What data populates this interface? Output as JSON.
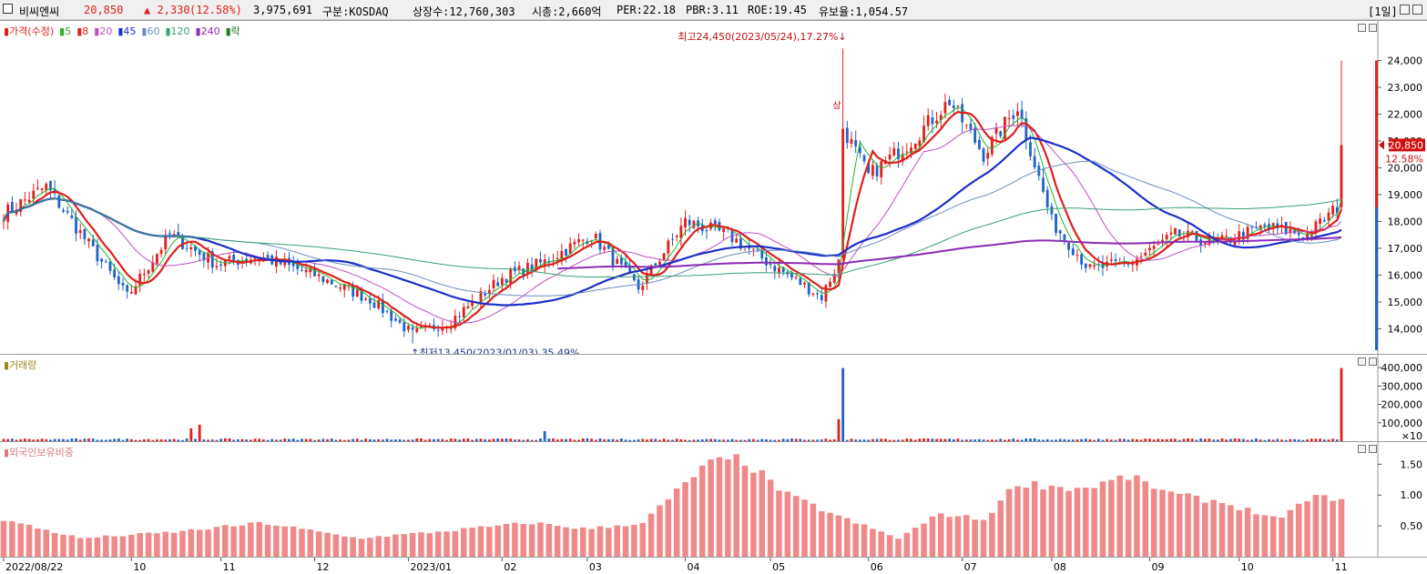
{
  "header": {
    "name": "비씨엔씨",
    "price": "20,850",
    "change": "▲ 2,330",
    "change_pct": "(12.58%)",
    "volume": "3,975,691",
    "market": "구분:KOSDAQ",
    "shares": "상장수:12,760,303",
    "market_cap": "시총:2,660억",
    "per": "PER:22.18",
    "pbr": "PBR:3.11",
    "roe": "ROE:19.45",
    "float_ratio": "유보율:1,054.57",
    "period": "[1일]"
  },
  "colors": {
    "up": "#e0201c",
    "down": "#1e64c8",
    "ma5": "#2ab02a",
    "ma8": "#e0201c",
    "ma20": "#c050c0",
    "ma45": "#1c2fc8",
    "ma60": "#6a8ec0",
    "ma120": "#3aa070",
    "ma240": "#8a2cb4",
    "foreign": "#f08a8a",
    "volume_label": "#a08a20"
  },
  "price_panel": {
    "legend": {
      "price": "가격(수정)",
      "ma5": "5",
      "ma8": "8",
      "ma20": "20",
      "ma45": "45",
      "ma60": "60",
      "ma120": "120",
      "ma240": "240",
      "fall": "락"
    },
    "high_annotation": "최고24,450(2023/05/24),17.27%",
    "low_annotation": "최저13,450(2023/01/03),35.49%",
    "marker_up": "상",
    "current_price_tag": "20,850",
    "current_pct_tag": "12.58%"
  },
  "volume_panel": {
    "label": "거래량",
    "unit": "×10"
  },
  "foreign_panel": {
    "label": "외국인보유비중"
  },
  "x_axis": {
    "labels": [
      "2022/08/22",
      "10",
      "11",
      "12",
      "2023/01",
      "02",
      "03",
      "04",
      "05",
      "06",
      "07",
      "08",
      "09",
      "10",
      "11"
    ]
  },
  "chart_data": [
    {
      "type": "candlestick",
      "title": "비씨엔씨",
      "y_ticks": [
        14000,
        15000,
        16000,
        17000,
        18000,
        19000,
        20000,
        21000,
        22000,
        23000,
        24000
      ],
      "y_tick_labels": [
        "14,000",
        "15,000",
        "16,000",
        "17,000",
        "18,000",
        "19,000",
        "20,000",
        "21,000",
        "22,000",
        "23,000",
        "24,000"
      ],
      "ylim": [
        13200,
        25000
      ],
      "anchors": [
        {
          "date": "2022/08/22",
          "close": 18300
        },
        {
          "date": "2022/09/05",
          "close": 19300
        },
        {
          "date": "2022/09/30",
          "close": 15200
        },
        {
          "date": "2022/10/14",
          "close": 17500
        },
        {
          "date": "2022/10/31",
          "close": 16400
        },
        {
          "date": "2022/11/14",
          "close": 16700
        },
        {
          "date": "2022/12/01",
          "close": 16000
        },
        {
          "date": "2022/12/20",
          "close": 15100
        },
        {
          "date": "2023/01/03",
          "close": 13800
        },
        {
          "date": "2023/01/16",
          "close": 14300
        },
        {
          "date": "2023/02/01",
          "close": 15900
        },
        {
          "date": "2023/02/15",
          "close": 16500
        },
        {
          "date": "2023/03/02",
          "close": 17500
        },
        {
          "date": "2023/03/17",
          "close": 15500
        },
        {
          "date": "2023/04/03",
          "close": 18000
        },
        {
          "date": "2023/04/17",
          "close": 17500
        },
        {
          "date": "2023/05/02",
          "close": 16300
        },
        {
          "date": "2023/05/17",
          "close": 15200
        },
        {
          "date": "2023/05/23",
          "close": 16500
        },
        {
          "date": "2023/05/24",
          "close": 21500
        },
        {
          "date": "2023/06/01",
          "close": 19700
        },
        {
          "date": "2023/06/15",
          "close": 21000
        },
        {
          "date": "2023/06/28",
          "close": 22500
        },
        {
          "date": "2023/07/10",
          "close": 20500
        },
        {
          "date": "2023/07/20",
          "close": 22300
        },
        {
          "date": "2023/08/01",
          "close": 18000
        },
        {
          "date": "2023/08/14",
          "close": 16200
        },
        {
          "date": "2023/08/28",
          "close": 16500
        },
        {
          "date": "2023/09/11",
          "close": 17500
        },
        {
          "date": "2023/09/25",
          "close": 17200
        },
        {
          "date": "2023/10/10",
          "close": 17800
        },
        {
          "date": "2023/10/24",
          "close": 17500
        },
        {
          "date": "2023/11/02",
          "close": 18520
        },
        {
          "date": "2023/11/03",
          "close": 20850
        }
      ],
      "series": [
        {
          "name": "5",
          "period": 5
        },
        {
          "name": "8",
          "period": 8
        },
        {
          "name": "20",
          "period": 20
        },
        {
          "name": "45",
          "period": 45
        },
        {
          "name": "60",
          "period": 60
        },
        {
          "name": "120",
          "period": 120
        },
        {
          "name": "240",
          "period": 240
        }
      ],
      "high": {
        "value": 24450,
        "date": "2023/05/24",
        "pct": 17.27
      },
      "low": {
        "value": 13450,
        "date": "2023/01/03",
        "pct": 35.49
      },
      "last": {
        "value": 20850,
        "pct": 12.58
      },
      "grid": false
    },
    {
      "type": "bar",
      "title": "거래량",
      "y_ticks": [
        100000,
        200000,
        300000,
        400000
      ],
      "y_tick_labels": [
        "100,000",
        "200,000",
        "300,000",
        "400,000"
      ],
      "ylim": [
        0,
        450000
      ],
      "spikes": [
        {
          "date": "2022/10/21",
          "value": 70000,
          "dir": "up"
        },
        {
          "date": "2022/10/25",
          "value": 90000,
          "dir": "up"
        },
        {
          "date": "2023/02/15",
          "value": 55000,
          "dir": "down"
        },
        {
          "date": "2023/05/23",
          "value": 120000,
          "dir": "up"
        },
        {
          "date": "2023/05/24",
          "value": 397569,
          "dir": "down"
        },
        {
          "date": "2023/11/03",
          "value": 397569,
          "dir": "up"
        }
      ]
    },
    {
      "type": "bar",
      "title": "외국인보유비중",
      "y_ticks": [
        0.5,
        1.0,
        1.5
      ],
      "y_tick_labels": [
        "0.50",
        "1.00",
        "1.50"
      ],
      "ylim": [
        0,
        1.8
      ],
      "anchors": [
        {
          "date": "2022/08/22",
          "value": 0.6
        },
        {
          "date": "2022/09/15",
          "value": 0.3
        },
        {
          "date": "2022/10/15",
          "value": 0.4
        },
        {
          "date": "2022/11/15",
          "value": 0.55
        },
        {
          "date": "2022/12/15",
          "value": 0.3
        },
        {
          "date": "2023/01/10",
          "value": 0.4
        },
        {
          "date": "2023/02/10",
          "value": 0.55
        },
        {
          "date": "2023/03/01",
          "value": 0.45
        },
        {
          "date": "2023/03/20",
          "value": 0.55
        },
        {
          "date": "2023/04/10",
          "value": 1.5
        },
        {
          "date": "2023/04/20",
          "value": 1.6
        },
        {
          "date": "2023/05/05",
          "value": 1.0
        },
        {
          "date": "2023/05/25",
          "value": 0.6
        },
        {
          "date": "2023/06/10",
          "value": 0.3
        },
        {
          "date": "2023/06/25",
          "value": 0.7
        },
        {
          "date": "2023/07/10",
          "value": 0.6
        },
        {
          "date": "2023/07/20",
          "value": 1.2
        },
        {
          "date": "2023/08/10",
          "value": 1.1
        },
        {
          "date": "2023/08/25",
          "value": 1.3
        },
        {
          "date": "2023/09/10",
          "value": 1.0
        },
        {
          "date": "2023/09/25",
          "value": 0.9
        },
        {
          "date": "2023/10/15",
          "value": 0.6
        },
        {
          "date": "2023/10/25",
          "value": 1.0
        },
        {
          "date": "2023/11/03",
          "value": 0.9
        }
      ]
    }
  ]
}
